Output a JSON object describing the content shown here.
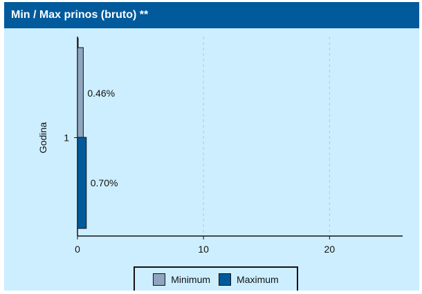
{
  "header": {
    "title": "Min / Max prinos (bruto) **"
  },
  "chart_data": {
    "type": "bar",
    "orientation": "horizontal",
    "categories": [
      "1"
    ],
    "ylabel": "Godina",
    "xlabel": "",
    "xlim": [
      0,
      25.8
    ],
    "x_ticks": [
      0,
      10,
      20
    ],
    "grid": "vertical-dashed",
    "legend_position": "bottom",
    "series": [
      {
        "name": "Minimum",
        "values": [
          0.46
        ],
        "labels": [
          "0.46%"
        ],
        "color": "#8fa5c0"
      },
      {
        "name": "Maximum",
        "values": [
          0.7
        ],
        "labels": [
          "0.70%"
        ],
        "color": "#005a9c"
      }
    ]
  }
}
